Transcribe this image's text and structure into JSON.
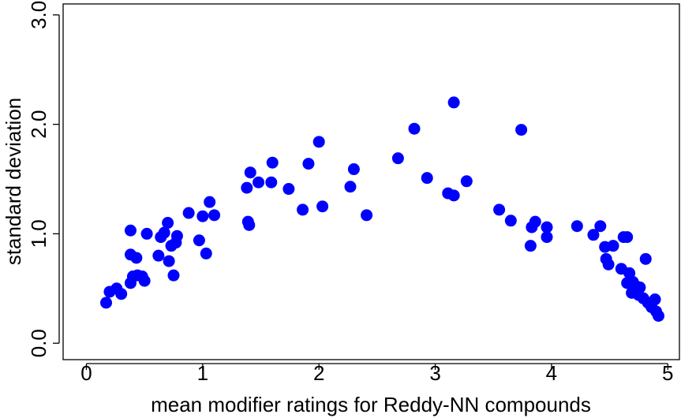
{
  "chart_data": {
    "type": "scatter",
    "title": "",
    "xlabel": "mean modifier ratings for Reddy-NN compounds",
    "ylabel": "standard deviation",
    "xlim": [
      -0.2,
      5.1
    ],
    "ylim": [
      -0.15,
      3.1
    ],
    "x_ticks": [
      0,
      1,
      2,
      3,
      4,
      5
    ],
    "x_tick_labels": [
      "0",
      "1",
      "2",
      "3",
      "4",
      "5"
    ],
    "y_ticks": [
      0.0,
      1.0,
      2.0,
      3.0
    ],
    "y_tick_labels": [
      "0.0",
      "1.0",
      "2.0",
      "3.0"
    ],
    "grid": false,
    "legend": "none",
    "point_color": "#0000ff",
    "points": [
      [
        0.17,
        0.37
      ],
      [
        0.2,
        0.47
      ],
      [
        0.26,
        0.5
      ],
      [
        0.3,
        0.45
      ],
      [
        0.38,
        1.03
      ],
      [
        0.38,
        0.81
      ],
      [
        0.38,
        0.55
      ],
      [
        0.4,
        0.61
      ],
      [
        0.43,
        0.78
      ],
      [
        0.44,
        0.62
      ],
      [
        0.48,
        0.61
      ],
      [
        0.5,
        0.57
      ],
      [
        0.52,
        1.0
      ],
      [
        0.62,
        0.8
      ],
      [
        0.64,
        0.97
      ],
      [
        0.67,
        1.01
      ],
      [
        0.7,
        1.1
      ],
      [
        0.71,
        0.75
      ],
      [
        0.73,
        0.89
      ],
      [
        0.75,
        0.62
      ],
      [
        0.77,
        0.92
      ],
      [
        0.78,
        0.98
      ],
      [
        0.88,
        1.19
      ],
      [
        0.97,
        0.94
      ],
      [
        1.0,
        1.16
      ],
      [
        1.03,
        0.82
      ],
      [
        1.06,
        1.29
      ],
      [
        1.1,
        1.17
      ],
      [
        1.38,
        1.42
      ],
      [
        1.39,
        1.11
      ],
      [
        1.4,
        1.08
      ],
      [
        1.41,
        1.56
      ],
      [
        1.48,
        1.47
      ],
      [
        1.59,
        1.47
      ],
      [
        1.6,
        1.65
      ],
      [
        1.74,
        1.41
      ],
      [
        1.86,
        1.22
      ],
      [
        1.91,
        1.64
      ],
      [
        2.0,
        1.84
      ],
      [
        2.03,
        1.25
      ],
      [
        2.27,
        1.43
      ],
      [
        2.3,
        1.59
      ],
      [
        2.41,
        1.17
      ],
      [
        2.68,
        1.69
      ],
      [
        2.82,
        1.96
      ],
      [
        2.93,
        1.51
      ],
      [
        3.11,
        1.37
      ],
      [
        3.16,
        1.35
      ],
      [
        3.16,
        2.2
      ],
      [
        3.27,
        1.48
      ],
      [
        3.55,
        1.22
      ],
      [
        3.65,
        1.12
      ],
      [
        3.74,
        1.95
      ],
      [
        3.82,
        0.89
      ],
      [
        3.83,
        1.06
      ],
      [
        3.86,
        1.11
      ],
      [
        3.96,
        1.06
      ],
      [
        3.96,
        0.97
      ],
      [
        4.22,
        1.07
      ],
      [
        4.36,
        0.99
      ],
      [
        4.42,
        1.07
      ],
      [
        4.46,
        0.88
      ],
      [
        4.47,
        0.77
      ],
      [
        4.49,
        0.72
      ],
      [
        4.53,
        0.89
      ],
      [
        4.6,
        0.68
      ],
      [
        4.62,
        0.97
      ],
      [
        4.65,
        0.97
      ],
      [
        4.65,
        0.55
      ],
      [
        4.67,
        0.64
      ],
      [
        4.69,
        0.46
      ],
      [
        4.7,
        0.56
      ],
      [
        4.72,
        0.47
      ],
      [
        4.73,
        0.52
      ],
      [
        4.75,
        0.44
      ],
      [
        4.76,
        0.51
      ],
      [
        4.79,
        0.41
      ],
      [
        4.81,
        0.77
      ],
      [
        4.83,
        0.37
      ],
      [
        4.86,
        0.33
      ],
      [
        4.89,
        0.4
      ],
      [
        4.9,
        0.29
      ],
      [
        4.92,
        0.25
      ]
    ]
  }
}
